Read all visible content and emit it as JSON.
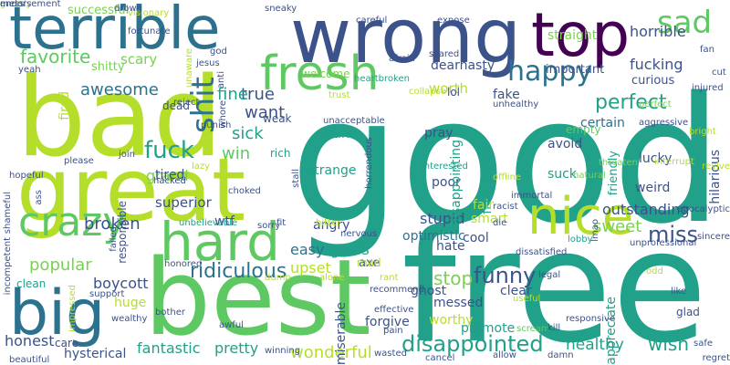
{
  "words": [
    {
      "text": "good",
      "color": "#21a08a"
    },
    {
      "text": "free",
      "color": "#21a08a"
    },
    {
      "text": "best",
      "color": "#5ec962"
    },
    {
      "text": "bad",
      "color": "#b5de2b"
    },
    {
      "text": "great",
      "color": "#b5de2b"
    },
    {
      "text": "wrong",
      "color": "#3b528b"
    },
    {
      "text": "terrible",
      "color": "#2c728e"
    },
    {
      "text": "top",
      "color": "#440154"
    },
    {
      "text": "fresh",
      "color": "#5ec962"
    },
    {
      "text": "hard",
      "color": "#5ec962"
    },
    {
      "text": "big",
      "color": "#2c728e"
    },
    {
      "text": "nice",
      "color": "#b5de2b"
    },
    {
      "text": "crazy",
      "color": "#5ec962"
    },
    {
      "text": "sad",
      "color": "#5ec962"
    },
    {
      "text": "shit",
      "color": "#2c728e"
    },
    {
      "text": "happy",
      "color": "#2c728e"
    },
    {
      "text": "funny",
      "color": "#3b528b"
    },
    {
      "text": "disappointed",
      "color": "#21a08a"
    },
    {
      "text": "miss",
      "color": "#3b528b"
    },
    {
      "text": "fuck",
      "color": "#21a08a"
    },
    {
      "text": "favorite",
      "color": "#5ec962"
    },
    {
      "text": "awesome",
      "color": "#2c728e"
    },
    {
      "text": "perfect",
      "color": "#21a08a"
    },
    {
      "text": "ridiculous",
      "color": "#2c728e"
    },
    {
      "text": "popular",
      "color": "#7ad151"
    },
    {
      "text": "broken",
      "color": "#3b528b"
    },
    {
      "text": "sweet",
      "color": "#7ad151"
    },
    {
      "text": "true",
      "color": "#3b528b"
    },
    {
      "text": "want",
      "color": "#3b528b"
    },
    {
      "text": "fine",
      "color": "#21a08a"
    },
    {
      "text": "sick",
      "color": "#21a08a"
    },
    {
      "text": "stop",
      "color": "#7ad151"
    },
    {
      "text": "fantastic",
      "color": "#21a08a"
    },
    {
      "text": "wish",
      "color": "#21a08a"
    },
    {
      "text": "healthy",
      "color": "#21a08a"
    },
    {
      "text": "boycott",
      "color": "#3b528b"
    },
    {
      "text": "honest",
      "color": "#3b528b"
    },
    {
      "text": "stupid",
      "color": "#3b528b"
    },
    {
      "text": "fucking",
      "color": "#3b528b"
    },
    {
      "text": "horrible",
      "color": "#3b528b"
    },
    {
      "text": "dearnasty",
      "color": "#3b528b"
    },
    {
      "text": "wonderful",
      "color": "#b5de2b"
    },
    {
      "text": "pretty",
      "color": "#21a08a"
    },
    {
      "text": "easy",
      "color": "#2c728e"
    },
    {
      "text": "gross",
      "color": "#21a08a"
    },
    {
      "text": "outstanding",
      "color": "#3b528b"
    },
    {
      "text": "upset",
      "color": "#b5de2b"
    },
    {
      "text": "win",
      "color": "#5ec962"
    },
    {
      "text": "grand",
      "color": "#7ad151"
    },
    {
      "text": "superior",
      "color": "#3b528b"
    },
    {
      "text": "scary",
      "color": "#7ad151"
    },
    {
      "text": "worth",
      "color": "#b5de2b"
    },
    {
      "text": "fake",
      "color": "#3b528b"
    },
    {
      "text": "certain",
      "color": "#2c728e"
    },
    {
      "text": "hilarious",
      "color": "#3b528b"
    },
    {
      "text": "cool",
      "color": "#3b528b"
    },
    {
      "text": "optimistic",
      "color": "#2c728e"
    },
    {
      "text": "poor",
      "color": "#3b528b"
    },
    {
      "text": "avoid",
      "color": "#3b528b"
    },
    {
      "text": "lucky",
      "color": "#3b528b"
    },
    {
      "text": "weird",
      "color": "#3b528b"
    },
    {
      "text": "hysterical",
      "color": "#3b528b"
    },
    {
      "text": "clear",
      "color": "#3b528b"
    },
    {
      "text": "ghost",
      "color": "#3b528b"
    },
    {
      "text": "forgive",
      "color": "#3b528b"
    },
    {
      "text": "miserable",
      "color": "#3b528b"
    },
    {
      "text": "appreciate",
      "color": "#21a08a"
    },
    {
      "text": "disappointing",
      "color": "#21a08a"
    },
    {
      "text": "frustrated",
      "color": "#21a08a"
    },
    {
      "text": "pray",
      "color": "#3b528b"
    },
    {
      "text": "thank",
      "color": "#21a08a"
    },
    {
      "text": "strange",
      "color": "#21a08a"
    },
    {
      "text": "suck",
      "color": "#21a08a"
    },
    {
      "text": "smart",
      "color": "#b5de2b"
    },
    {
      "text": "fair",
      "color": "#b5de2b"
    },
    {
      "text": "hate",
      "color": "#3b528b"
    },
    {
      "text": "angry",
      "color": "#3b528b"
    },
    {
      "text": "tired",
      "color": "#3b528b"
    },
    {
      "text": "wtf",
      "color": "#3b528b"
    },
    {
      "text": "fired",
      "color": "#b5de2b"
    },
    {
      "text": "worthy",
      "color": "#b5de2b"
    },
    {
      "text": "messed",
      "color": "#3b528b"
    },
    {
      "text": "promote",
      "color": "#21a08a"
    },
    {
      "text": "huge",
      "color": "#b5de2b"
    },
    {
      "text": "responsible",
      "color": "#3b528b"
    },
    {
      "text": "straight",
      "color": "#7ad151"
    },
    {
      "text": "important",
      "color": "#3b528b"
    },
    {
      "text": "curious",
      "color": "#3b528b"
    },
    {
      "text": "successful",
      "color": "#7ad151"
    },
    {
      "text": "friendly",
      "color": "#21a08a"
    },
    {
      "text": "shitty",
      "color": "#7ad151"
    },
    {
      "text": "dead",
      "color": "#3b528b"
    },
    {
      "text": "weak",
      "color": "#3b528b"
    },
    {
      "text": "rich",
      "color": "#21a08a"
    },
    {
      "text": "welcome",
      "color": "#7ad151"
    },
    {
      "text": "lol",
      "color": "#3b528b"
    },
    {
      "text": "glad",
      "color": "#3b528b"
    },
    {
      "text": "empty",
      "color": "#5ec962"
    },
    {
      "text": "clean",
      "color": "#21a08a"
    },
    {
      "text": "care",
      "color": "#3b528b"
    },
    {
      "text": "axe",
      "color": "#3b528b"
    },
    {
      "text": "mad",
      "color": "#b5de2b"
    },
    {
      "text": "injured",
      "color": "#3b528b"
    },
    {
      "text": "cut",
      "color": "#3b528b"
    },
    {
      "text": "fan",
      "color": "#3b528b"
    },
    {
      "text": "aggressive",
      "color": "#3b528b"
    },
    {
      "text": "perfect",
      "color": "#7ad151"
    },
    {
      "text": "bright",
      "color": "#b5de2b"
    },
    {
      "text": "interrupt",
      "color": "#b5de2b"
    },
    {
      "text": "revive",
      "color": "#b5de2b"
    },
    {
      "text": "threaten",
      "color": "#7ad151"
    },
    {
      "text": "natural",
      "color": "#7ad151"
    },
    {
      "text": "interested",
      "color": "#21a08a"
    },
    {
      "text": "offline",
      "color": "#b5de2b"
    },
    {
      "text": "immortal",
      "color": "#3b528b"
    },
    {
      "text": "racist",
      "color": "#3b528b"
    },
    {
      "text": "die",
      "color": "#3b528b"
    },
    {
      "text": "lmao",
      "color": "#3b528b"
    },
    {
      "text": "lobby",
      "color": "#21a08a"
    },
    {
      "text": "dissatisfied",
      "color": "#3b528b"
    },
    {
      "text": "unprofessional",
      "color": "#3b528b"
    },
    {
      "text": "apocalyptic",
      "color": "#3b528b"
    },
    {
      "text": "sincere",
      "color": "#3b528b"
    },
    {
      "text": "odd",
      "color": "#b5de2b"
    },
    {
      "text": "like",
      "color": "#3b528b"
    },
    {
      "text": "legal",
      "color": "#3b528b"
    },
    {
      "text": "useful",
      "color": "#b5de2b"
    },
    {
      "text": "responsive",
      "color": "#3b528b"
    },
    {
      "text": "scream",
      "color": "#5ec962"
    },
    {
      "text": "kill",
      "color": "#3b528b"
    },
    {
      "text": "safe",
      "color": "#3b528b"
    },
    {
      "text": "regret",
      "color": "#3b528b"
    },
    {
      "text": "damn",
      "color": "#3b528b"
    },
    {
      "text": "allow",
      "color": "#3b528b"
    },
    {
      "text": "cancel",
      "color": "#3b528b"
    },
    {
      "text": "wasted",
      "color": "#3b528b"
    },
    {
      "text": "pain",
      "color": "#3b528b"
    },
    {
      "text": "effective",
      "color": "#3b528b"
    },
    {
      "text": "recommend",
      "color": "#3b528b"
    },
    {
      "text": "rant",
      "color": "#b5de2b"
    },
    {
      "text": "nervous",
      "color": "#3b528b"
    },
    {
      "text": "bitter",
      "color": "#b5de2b"
    },
    {
      "text": "alone",
      "color": "#b5de2b"
    },
    {
      "text": "dumb",
      "color": "#b5de2b"
    },
    {
      "text": "winning",
      "color": "#3b528b"
    },
    {
      "text": "awful",
      "color": "#3b528b"
    },
    {
      "text": "fit",
      "color": "#3b528b"
    },
    {
      "text": "unbelievable",
      "color": "#21a08a"
    },
    {
      "text": "sorry",
      "color": "#3b528b"
    },
    {
      "text": "choked",
      "color": "#3b528b"
    },
    {
      "text": "stall",
      "color": "#3b528b"
    },
    {
      "text": "horrendous",
      "color": "#3b528b"
    },
    {
      "text": "unacceptable",
      "color": "#3b528b"
    },
    {
      "text": "unhealthy",
      "color": "#3b528b"
    },
    {
      "text": "trust",
      "color": "#b5de2b"
    },
    {
      "text": "collapse",
      "color": "#b5de2b"
    },
    {
      "text": "heartbroken",
      "color": "#21a08a"
    },
    {
      "text": "afraid",
      "color": "#3b528b"
    },
    {
      "text": "scared",
      "color": "#3b528b"
    },
    {
      "text": "expose",
      "color": "#3b528b"
    },
    {
      "text": "careful",
      "color": "#3b528b"
    },
    {
      "text": "sneaky",
      "color": "#3b528b"
    },
    {
      "text": "god",
      "color": "#3b528b"
    },
    {
      "text": "jesus",
      "color": "#3b528b"
    },
    {
      "text": "anti",
      "color": "#3b528b"
    },
    {
      "text": "whore",
      "color": "#3b528b"
    },
    {
      "text": "punish",
      "color": "#3b528b"
    },
    {
      "text": "unaware",
      "color": "#b5de2b"
    },
    {
      "text": "visionary",
      "color": "#b5de2b"
    },
    {
      "text": "fortunate",
      "color": "#3b528b"
    },
    {
      "text": "drown",
      "color": "#3b528b"
    },
    {
      "text": "yeah",
      "color": "#3b528b"
    },
    {
      "text": "reject",
      "color": "#3b528b"
    },
    {
      "text": "hopeful",
      "color": "#3b528b"
    },
    {
      "text": "please",
      "color": "#3b528b"
    },
    {
      "text": "join",
      "color": "#3b528b"
    },
    {
      "text": "lazy",
      "color": "#b5de2b"
    },
    {
      "text": "hacked",
      "color": "#3b528b"
    },
    {
      "text": "ass",
      "color": "#3b528b"
    },
    {
      "text": "failed",
      "color": "#3b528b"
    },
    {
      "text": "shameful",
      "color": "#3b528b"
    },
    {
      "text": "incompetent",
      "color": "#3b528b"
    },
    {
      "text": "impressed",
      "color": "#b5de2b"
    },
    {
      "text": "honored",
      "color": "#3b528b"
    },
    {
      "text": "support",
      "color": "#3b528b"
    },
    {
      "text": "wealthy",
      "color": "#3b528b"
    },
    {
      "text": "bother",
      "color": "#3b528b"
    },
    {
      "text": "beautiful",
      "color": "#3b528b"
    },
    {
      "text": "greedy",
      "color": "#b5de2b"
    },
    {
      "text": "mess",
      "color": "#3b528b"
    },
    {
      "text": "endorsement",
      "color": "#3b528b"
    }
  ]
}
